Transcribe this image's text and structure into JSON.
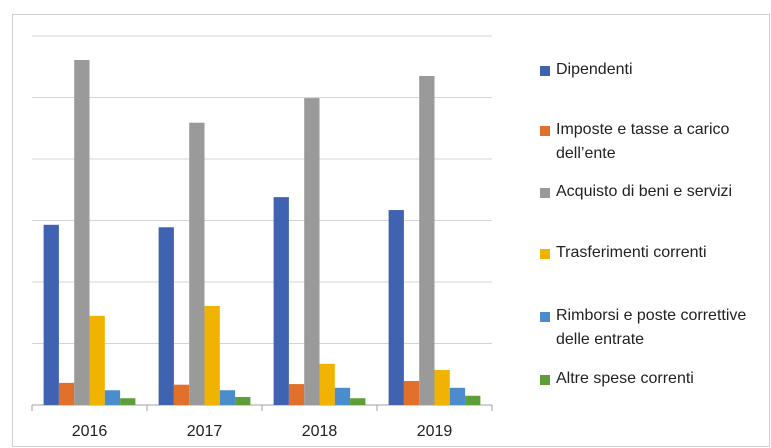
{
  "chart_data": {
    "type": "bar",
    "categories": [
      "2016",
      "2017",
      "2018",
      "2019"
    ],
    "series": [
      {
        "name": "Dipendenti",
        "color": "#3f63b0",
        "values": [
          2.93,
          2.89,
          3.38,
          3.17
        ]
      },
      {
        "name": "Imposte e tasse a carico dell’ente",
        "color": "#e0702a",
        "values": [
          0.36,
          0.33,
          0.34,
          0.39
        ]
      },
      {
        "name": "Acquisto di beni e servizi",
        "color": "#9a9a9a",
        "values": [
          5.61,
          4.59,
          4.99,
          5.35
        ]
      },
      {
        "name": "Trasferimenti correnti",
        "color": "#f0b400",
        "values": [
          1.45,
          1.61,
          0.67,
          0.57
        ]
      },
      {
        "name": "Rimborsi e poste correttive delle entrate",
        "color": "#4a8ccc",
        "values": [
          0.24,
          0.24,
          0.28,
          0.28
        ]
      },
      {
        "name": "Altre spese correnti",
        "color": "#5e9e3a",
        "values": [
          0.11,
          0.13,
          0.11,
          0.15
        ]
      }
    ],
    "ylim": [
      0,
      6
    ],
    "yticks": [
      0,
      1,
      2,
      3,
      4,
      5,
      6
    ],
    "grid": true,
    "legend": "right"
  }
}
